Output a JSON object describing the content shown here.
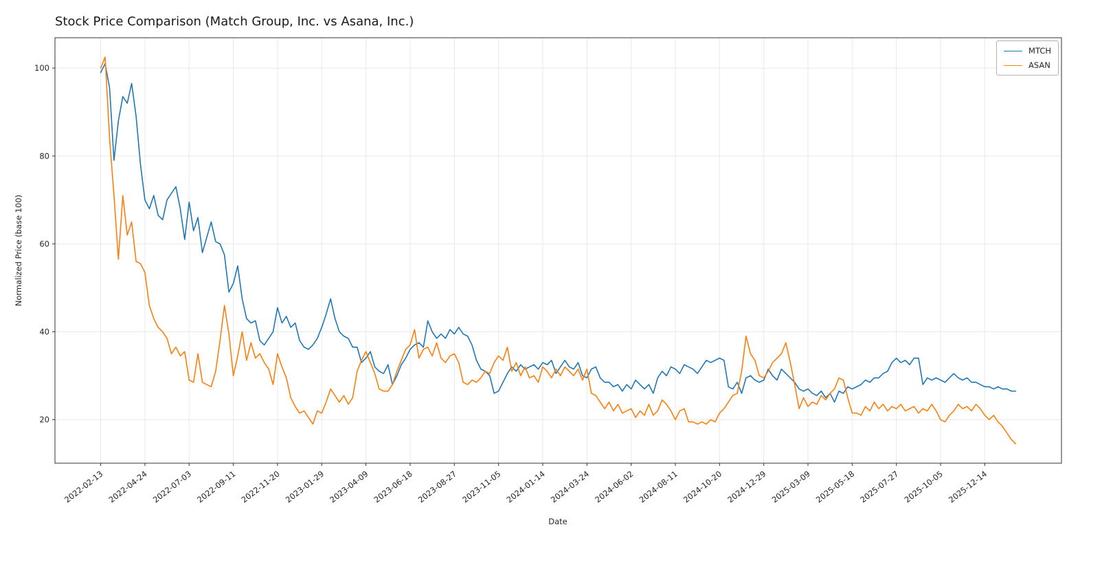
{
  "figure": {
    "background": "#ffffff",
    "text_color": "#262626",
    "grid_color": "#e8e8e8",
    "frame_color": "#333333"
  },
  "chart_data": {
    "type": "line",
    "title": "Stock Price Comparison (Match Group, Inc. vs Asana, Inc.)",
    "xlabel": "Date",
    "ylabel": "Normalized Price (base 100)",
    "grid": true,
    "legend_position": "upper right",
    "x_unit": "weeks since 2022-02-13",
    "xlim": [
      -10.35,
      217.35
    ],
    "ylim": [
      10.1,
      106.9
    ],
    "y_ticks": [
      20,
      40,
      60,
      80,
      100
    ],
    "x_ticks": {
      "positions": [
        0,
        10,
        20,
        30,
        40,
        50,
        60,
        70,
        80,
        90,
        100,
        110,
        120,
        130,
        140,
        150,
        160,
        170,
        180,
        190,
        200
      ],
      "labels": [
        "2022-02-13",
        "2022-04-24",
        "2022-07-03",
        "2022-09-11",
        "2022-11-20",
        "2023-01-29",
        "2023-04-09",
        "2023-06-18",
        "2023-08-27",
        "2023-11-05",
        "2024-01-14",
        "2024-03-24",
        "2024-06-02",
        "2024-08-11",
        "2024-10-20",
        "2024-12-29",
        "2025-03-09",
        "2025-05-18",
        "2025-07-27",
        "2025-10-05",
        "2025-12-14"
      ]
    },
    "series": [
      {
        "name": "MTCH",
        "color": "#1f77b4",
        "x_start": 0,
        "x_step": 1,
        "values": [
          99,
          101,
          95.5,
          79,
          88,
          93.5,
          92,
          96.5,
          89,
          78,
          70,
          68,
          71,
          66.5,
          65.5,
          70,
          71.5,
          73,
          68,
          61,
          69.5,
          63,
          66,
          58,
          61.5,
          65,
          60.5,
          60,
          57.5,
          49,
          51,
          55,
          47.5,
          43,
          42,
          42.5,
          38,
          37,
          38.5,
          40,
          45.5,
          42,
          43.5,
          41,
          42,
          38,
          36.5,
          36,
          37,
          38.5,
          41,
          44,
          47.5,
          43,
          40,
          39,
          38.5,
          36.5,
          36.5,
          33,
          34,
          35.5,
          32,
          31,
          30.5,
          32.5,
          28,
          30,
          32.5,
          34,
          36,
          37,
          37.5,
          36.5,
          42.5,
          40,
          38.5,
          39.5,
          38.5,
          40.5,
          39.5,
          41,
          39.5,
          39,
          37,
          33.5,
          31.5,
          31,
          30,
          26,
          26.5,
          28.5,
          30.5,
          32,
          31,
          32.5,
          31.5,
          32,
          32.5,
          31.5,
          33,
          32.5,
          33.5,
          30.5,
          32,
          33.5,
          32,
          31.5,
          33,
          30,
          29.5,
          31.5,
          32,
          29.5,
          28.5,
          28.5,
          27.5,
          28,
          26.5,
          28,
          27,
          29,
          28,
          27,
          28,
          26,
          29.5,
          31,
          30,
          32,
          31.5,
          30.5,
          32.5,
          32,
          31.5,
          30.5,
          32,
          33.5,
          33,
          33.5,
          34,
          33.5,
          27.5,
          27,
          28.5,
          26,
          29.5,
          30,
          29,
          28.5,
          29,
          31.5,
          30,
          29,
          31.5,
          30.5,
          29.5,
          28.5,
          27,
          26.5,
          27,
          26,
          25.5,
          26.5,
          25,
          26,
          24,
          26.5,
          26,
          27.5,
          27,
          27.5,
          28,
          29,
          28.5,
          29.5,
          29.5,
          30.5,
          31,
          33,
          34,
          33,
          33.5,
          32.5,
          34,
          34,
          28,
          29.5,
          29,
          29.5,
          29,
          28.5,
          29.5,
          30.5,
          29.5,
          29,
          29.5,
          28.5,
          28.5,
          28,
          27.5,
          27.5,
          27,
          27.5,
          27,
          27,
          26.5,
          26.5
        ]
      },
      {
        "name": "ASAN",
        "color": "#ff7f0e",
        "x_start": 0,
        "x_step": 1,
        "values": [
          100,
          102.5,
          84,
          71,
          56.5,
          71,
          62,
          65,
          56,
          55.5,
          53.5,
          46,
          43,
          41,
          40,
          38.5,
          35,
          36.5,
          34.5,
          35.5,
          29,
          28.5,
          35,
          28.5,
          28,
          27.5,
          31,
          38,
          46,
          39.5,
          30,
          34.5,
          40,
          33.5,
          37.5,
          34,
          35,
          33,
          31.5,
          28,
          35,
          32,
          29.5,
          25,
          23,
          21.5,
          22,
          20.5,
          19,
          22,
          21.5,
          24,
          27,
          25.5,
          24,
          25.5,
          23.5,
          25,
          31,
          33.5,
          35.5,
          33,
          30.5,
          27,
          26.5,
          26.5,
          28,
          31,
          33.5,
          36,
          37,
          40.5,
          34,
          36,
          36.5,
          34.5,
          37.5,
          34,
          33,
          34.5,
          35,
          33,
          28.5,
          28,
          29,
          28.5,
          29.5,
          31,
          30.5,
          33,
          34.5,
          33.5,
          36.5,
          31,
          33,
          30,
          32,
          29.5,
          30,
          28.5,
          32,
          31,
          29.5,
          31.5,
          30,
          32,
          31,
          30,
          31.5,
          29,
          31.5,
          26,
          25.5,
          24,
          22.5,
          24,
          22,
          23.5,
          21.5,
          22,
          22.5,
          20.5,
          22,
          21,
          23.5,
          21,
          22,
          24.5,
          23.5,
          22,
          20,
          22,
          22.5,
          19.5,
          19.5,
          19,
          19.5,
          19,
          20,
          19.5,
          21.5,
          22.5,
          24,
          25.5,
          26,
          31,
          39,
          35,
          33.5,
          30,
          29.5,
          31,
          33,
          34,
          35,
          37.5,
          33,
          28,
          22.5,
          25,
          23,
          24,
          23.5,
          25.5,
          24.5,
          26,
          27,
          29.5,
          29,
          25,
          21.5,
          21.5,
          21,
          23,
          22,
          24,
          22.5,
          23.5,
          22,
          23,
          22.5,
          23.5,
          22,
          22.5,
          23,
          21.5,
          22.5,
          22,
          23.5,
          22,
          20,
          19.5,
          21,
          22,
          23.5,
          22.5,
          23,
          22,
          23.5,
          22.5,
          21,
          20,
          21,
          19.5,
          18.5,
          17,
          15.5,
          14.5
        ]
      }
    ]
  }
}
